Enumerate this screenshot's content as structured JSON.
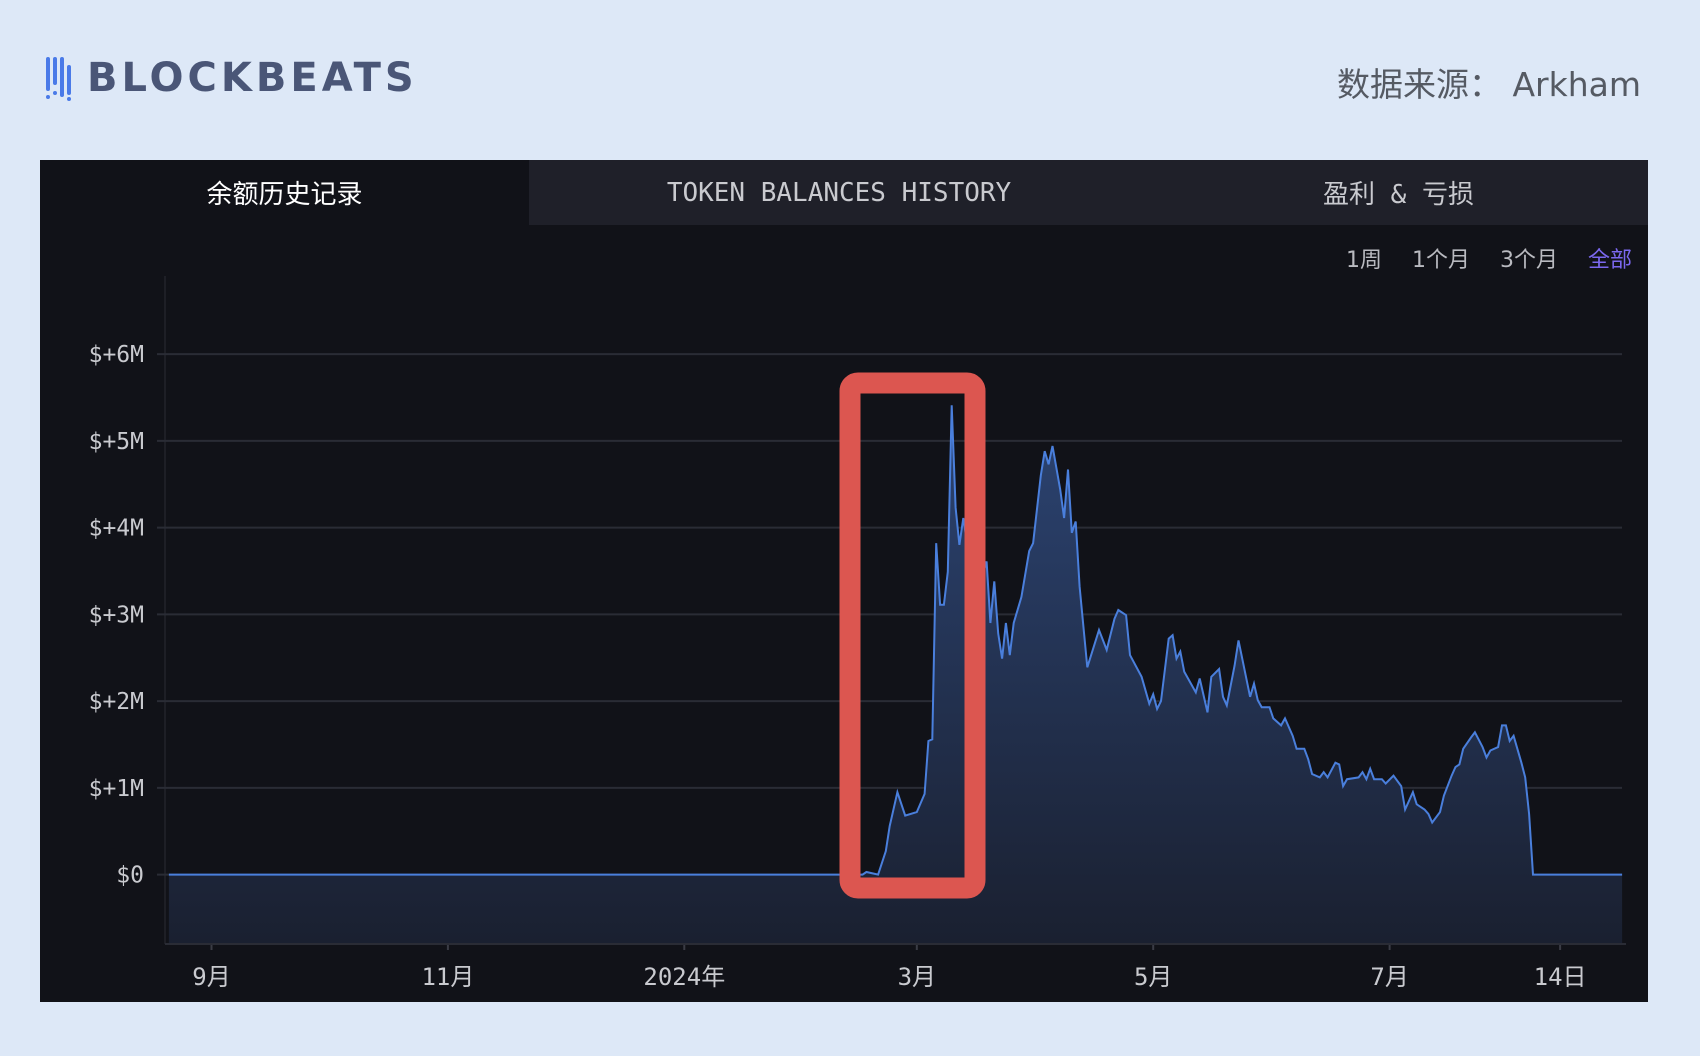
{
  "header": {
    "logo_text": "BLOCKBEATS",
    "source_label": "数据来源： Arkham"
  },
  "tabs": [
    {
      "label": "余额历史记录",
      "active": true
    },
    {
      "label": "TOKEN BALANCES HISTORY",
      "active": false
    },
    {
      "label": "盈利 & 亏损",
      "active": false
    }
  ],
  "time_ranges": [
    {
      "label": "1周",
      "active": false
    },
    {
      "label": "1个月",
      "active": false
    },
    {
      "label": "3个月",
      "active": false
    },
    {
      "label": "全部",
      "active": true
    }
  ],
  "colors": {
    "line": "#4a7fdc",
    "fill_top": "#2c4473",
    "fill_bottom": "#1a2030",
    "highlight_box": "#dc5650",
    "active_range": "#7b68ee",
    "background": "#111218"
  },
  "chart_data": {
    "type": "area",
    "title": "",
    "xlabel": "",
    "ylabel": "",
    "xlim": [
      "2023-08-20",
      "2024-08-31"
    ],
    "ylim": [
      -0.8,
      6.9
    ],
    "y_unit": "USD millions",
    "grid": "horizontal",
    "y_ticks": [
      {
        "value": 0,
        "label": "$0"
      },
      {
        "value": 1,
        "label": "$+1M"
      },
      {
        "value": 2,
        "label": "$+2M"
      },
      {
        "value": 3,
        "label": "$+3M"
      },
      {
        "value": 4,
        "label": "$+4M"
      },
      {
        "value": 5,
        "label": "$+5M"
      },
      {
        "value": 6,
        "label": "$+6M"
      }
    ],
    "x_ticks": [
      {
        "date": "2023-09-01",
        "label": "9月"
      },
      {
        "date": "2023-11-01",
        "label": "11月"
      },
      {
        "date": "2024-01-01",
        "label": "2024年"
      },
      {
        "date": "2024-03-01",
        "label": "3月"
      },
      {
        "date": "2024-05-01",
        "label": "5月"
      },
      {
        "date": "2024-07-01",
        "label": "7月"
      },
      {
        "date": "2024-08-14",
        "label": "14日"
      }
    ],
    "highlight": {
      "from": "2024-02-16",
      "to": "2024-03-14",
      "note": "red box"
    },
    "points": [
      [
        "2023-08-21",
        0
      ],
      [
        "2024-02-16",
        0
      ],
      [
        "2024-02-17",
        0.03
      ],
      [
        "2024-02-20",
        0
      ],
      [
        "2024-02-22",
        0.27
      ],
      [
        "2024-02-23",
        0.56
      ],
      [
        "2024-02-25",
        0.95
      ],
      [
        "2024-02-27",
        0.68
      ],
      [
        "2024-03-01",
        0.72
      ],
      [
        "2024-03-03",
        0.93
      ],
      [
        "2024-03-04",
        1.54
      ],
      [
        "2024-03-05",
        1.56
      ],
      [
        "2024-03-06",
        3.82
      ],
      [
        "2024-03-07",
        3.11
      ],
      [
        "2024-03-08",
        3.11
      ],
      [
        "2024-03-09",
        3.49
      ],
      [
        "2024-03-10",
        5.41
      ],
      [
        "2024-03-11",
        4.23
      ],
      [
        "2024-03-12",
        3.8
      ],
      [
        "2024-03-13",
        4.11
      ],
      [
        "2024-03-15",
        3.5
      ],
      [
        "2024-03-17",
        3.3
      ],
      [
        "2024-03-19",
        3.61
      ],
      [
        "2024-03-20",
        2.9
      ],
      [
        "2024-03-21",
        3.38
      ],
      [
        "2024-03-22",
        2.78
      ],
      [
        "2024-03-23",
        2.49
      ],
      [
        "2024-03-24",
        2.9
      ],
      [
        "2024-03-25",
        2.53
      ],
      [
        "2024-03-26",
        2.9
      ],
      [
        "2024-03-28",
        3.2
      ],
      [
        "2024-03-30",
        3.73
      ],
      [
        "2024-03-31",
        3.82
      ],
      [
        "2024-04-02",
        4.6
      ],
      [
        "2024-04-03",
        4.88
      ],
      [
        "2024-04-04",
        4.73
      ],
      [
        "2024-04-05",
        4.94
      ],
      [
        "2024-04-07",
        4.44
      ],
      [
        "2024-04-08",
        4.11
      ],
      [
        "2024-04-09",
        4.67
      ],
      [
        "2024-04-10",
        3.94
      ],
      [
        "2024-04-11",
        4.07
      ],
      [
        "2024-04-12",
        3.32
      ],
      [
        "2024-04-14",
        2.39
      ],
      [
        "2024-04-17",
        2.82
      ],
      [
        "2024-04-19",
        2.59
      ],
      [
        "2024-04-21",
        2.95
      ],
      [
        "2024-04-22",
        3.05
      ],
      [
        "2024-04-24",
        2.99
      ],
      [
        "2024-04-25",
        2.53
      ],
      [
        "2024-04-28",
        2.28
      ],
      [
        "2024-04-30",
        1.97
      ],
      [
        "2024-05-01",
        2.08
      ],
      [
        "2024-05-02",
        1.91
      ],
      [
        "2024-05-03",
        2.0
      ],
      [
        "2024-05-05",
        2.72
      ],
      [
        "2024-05-06",
        2.76
      ],
      [
        "2024-05-07",
        2.49
      ],
      [
        "2024-05-08",
        2.57
      ],
      [
        "2024-05-09",
        2.34
      ],
      [
        "2024-05-12",
        2.1
      ],
      [
        "2024-05-13",
        2.26
      ],
      [
        "2024-05-15",
        1.87
      ],
      [
        "2024-05-16",
        2.28
      ],
      [
        "2024-05-18",
        2.37
      ],
      [
        "2024-05-19",
        2.05
      ],
      [
        "2024-05-20",
        1.95
      ],
      [
        "2024-05-22",
        2.41
      ],
      [
        "2024-05-23",
        2.7
      ],
      [
        "2024-05-26",
        2.05
      ],
      [
        "2024-05-27",
        2.2
      ],
      [
        "2024-05-28",
        2.01
      ],
      [
        "2024-05-29",
        1.93
      ],
      [
        "2024-05-31",
        1.93
      ],
      [
        "2024-06-01",
        1.8
      ],
      [
        "2024-06-03",
        1.72
      ],
      [
        "2024-06-04",
        1.8
      ],
      [
        "2024-06-06",
        1.6
      ],
      [
        "2024-06-07",
        1.45
      ],
      [
        "2024-06-09",
        1.45
      ],
      [
        "2024-06-10",
        1.33
      ],
      [
        "2024-06-11",
        1.16
      ],
      [
        "2024-06-13",
        1.12
      ],
      [
        "2024-06-14",
        1.18
      ],
      [
        "2024-06-15",
        1.12
      ],
      [
        "2024-06-17",
        1.29
      ],
      [
        "2024-06-18",
        1.27
      ],
      [
        "2024-06-19",
        1.02
      ],
      [
        "2024-06-20",
        1.1
      ],
      [
        "2024-06-23",
        1.12
      ],
      [
        "2024-06-24",
        1.18
      ],
      [
        "2024-06-25",
        1.1
      ],
      [
        "2024-06-26",
        1.22
      ],
      [
        "2024-06-27",
        1.1
      ],
      [
        "2024-06-29",
        1.1
      ],
      [
        "2024-06-30",
        1.05
      ],
      [
        "2024-07-02",
        1.14
      ],
      [
        "2024-07-04",
        1.02
      ],
      [
        "2024-07-05",
        0.75
      ],
      [
        "2024-07-07",
        0.95
      ],
      [
        "2024-07-08",
        0.81
      ],
      [
        "2024-07-10",
        0.75
      ],
      [
        "2024-07-11",
        0.7
      ],
      [
        "2024-07-12",
        0.6
      ],
      [
        "2024-07-14",
        0.72
      ],
      [
        "2024-07-15",
        0.91
      ],
      [
        "2024-07-17",
        1.14
      ],
      [
        "2024-07-18",
        1.24
      ],
      [
        "2024-07-19",
        1.27
      ],
      [
        "2024-07-20",
        1.45
      ],
      [
        "2024-07-22",
        1.58
      ],
      [
        "2024-07-23",
        1.64
      ],
      [
        "2024-07-25",
        1.47
      ],
      [
        "2024-07-26",
        1.35
      ],
      [
        "2024-07-27",
        1.43
      ],
      [
        "2024-07-29",
        1.47
      ],
      [
        "2024-07-30",
        1.72
      ],
      [
        "2024-07-31",
        1.72
      ],
      [
        "2024-08-01",
        1.54
      ],
      [
        "2024-08-02",
        1.6
      ],
      [
        "2024-08-04",
        1.29
      ],
      [
        "2024-08-05",
        1.12
      ],
      [
        "2024-08-06",
        0.7
      ],
      [
        "2024-08-07",
        0
      ],
      [
        "2024-08-30",
        0
      ]
    ]
  }
}
